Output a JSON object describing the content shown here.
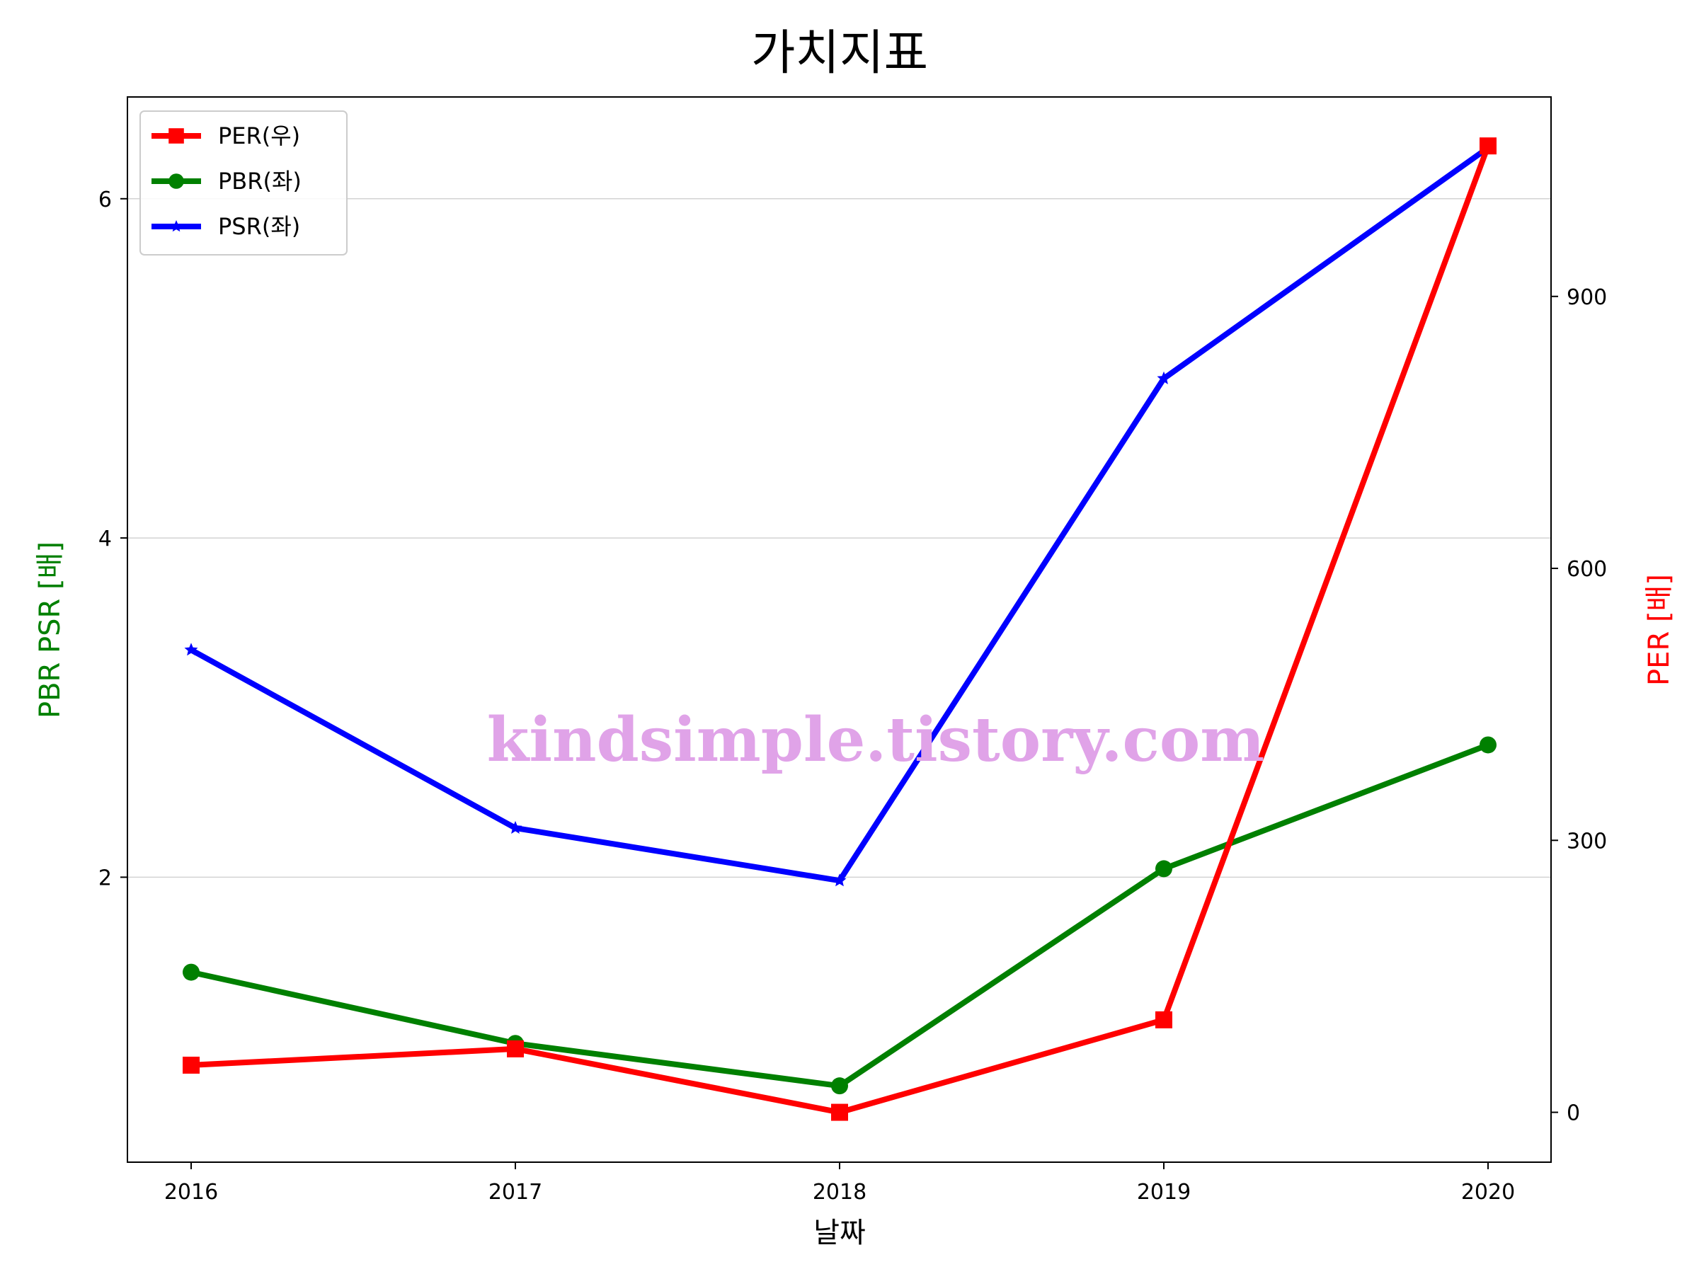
{
  "chart_data": {
    "type": "line",
    "title": "가치지표",
    "xlabel": "날짜",
    "ylabel_left": "PBR PSR [배]",
    "ylabel_right": "PER [배]",
    "categories": [
      "2016",
      "2017",
      "2018",
      "2019",
      "2020"
    ],
    "y_left": {
      "ticks": [
        "2",
        "4",
        "6"
      ],
      "range": [
        0.32,
        6.6
      ],
      "grid": true
    },
    "y_right": {
      "ticks": [
        "0",
        "300",
        "600",
        "900"
      ],
      "range": [
        -55,
        1120
      ]
    },
    "legend": {
      "placement": "upper-left"
    },
    "series": [
      {
        "name": "PER(우)",
        "axis": "right",
        "color": "#ff0000",
        "marker": "square",
        "values": [
          52,
          70,
          0,
          102,
          1066
        ]
      },
      {
        "name": "PBR(좌)",
        "axis": "left",
        "color": "#008000",
        "marker": "circle",
        "values": [
          1.44,
          1.02,
          0.77,
          2.05,
          2.78
        ]
      },
      {
        "name": "PSR(좌)",
        "axis": "left",
        "color": "#0000ff",
        "marker": "star",
        "values": [
          3.34,
          2.29,
          1.98,
          4.94,
          6.3
        ]
      }
    ],
    "watermark": "kindsimple.tistory.com"
  }
}
